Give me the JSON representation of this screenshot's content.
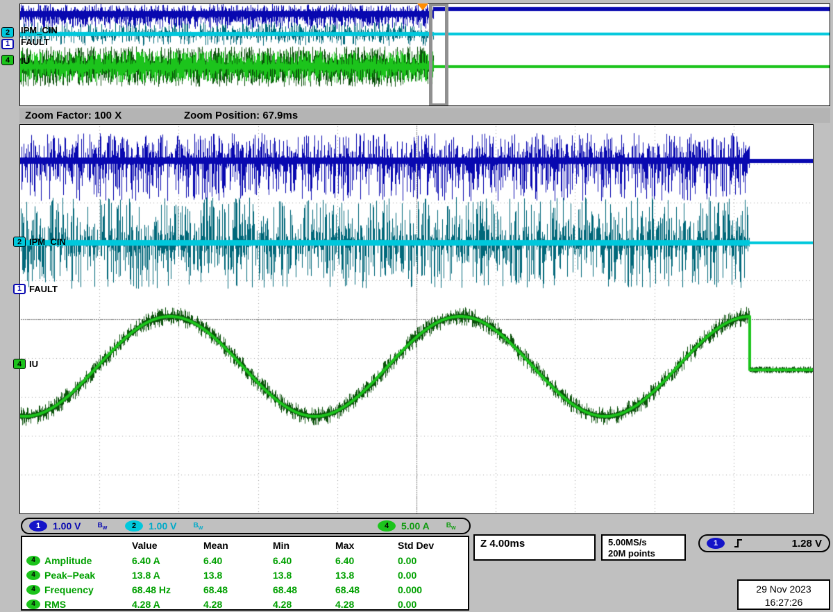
{
  "overview": {
    "channels": [
      {
        "badge": "2",
        "label": "IPM_CIN"
      },
      {
        "badge": "1",
        "label": "FAULT"
      },
      {
        "badge": "4",
        "label": "IU"
      }
    ]
  },
  "zoom_bar": {
    "factor": "Zoom Factor: 100 X",
    "position": "Zoom Position: 67.9ms"
  },
  "main": {
    "channels": [
      {
        "badge": "2",
        "label": "IPM_CIN"
      },
      {
        "badge": "1",
        "label": "FAULT"
      },
      {
        "badge": "4",
        "label": "IU"
      }
    ]
  },
  "channel_bar": {
    "bw": {
      "b": "B",
      "w": "W"
    },
    "channels": [
      {
        "badge": "1",
        "scale": "1.00 V"
      },
      {
        "badge": "2",
        "scale": "1.00 V"
      },
      {
        "badge": "4",
        "scale": "5.00 A"
      }
    ]
  },
  "horizontal": {
    "zoom_scale": "Z 4.00ms",
    "sample_rate": "5.00MS/s",
    "record_length": "20M points"
  },
  "trigger": {
    "channel": "1",
    "level": "1.28 V"
  },
  "measurements": {
    "headers": [
      "Value",
      "Mean",
      "Min",
      "Max",
      "Std Dev"
    ],
    "rows": [
      {
        "badge": "4",
        "name": "Amplitude",
        "value": "6.40 A",
        "mean": "6.40",
        "min": "6.40",
        "max": "6.40",
        "std": "0.00"
      },
      {
        "badge": "4",
        "name": "Peak–Peak",
        "value": "13.8 A",
        "mean": "13.8",
        "min": "13.8",
        "max": "13.8",
        "std": "0.00"
      },
      {
        "badge": "4",
        "name": "Frequency",
        "value": "68.48 Hz",
        "mean": "68.48",
        "min": "68.48",
        "max": "68.48",
        "std": "0.000"
      },
      {
        "badge": "4",
        "name": "RMS",
        "value": "4.28 A",
        "mean": "4.28",
        "min": "4.28",
        "max": "4.28",
        "std": "0.00"
      }
    ]
  },
  "datetime": {
    "date": "29 Nov 2023",
    "time": "16:27:26"
  },
  "waveforms": {
    "iu": {
      "shape": "sine",
      "frequency_hz": 68.48,
      "cycles_visible": 2.7,
      "after_fault": "flat line"
    },
    "ipm_cin": {
      "shape": "flat line with dense noise spikes",
      "after_fault": "clean flat line"
    },
    "fault": {
      "shape": "high level with dense noise",
      "after_fault": "clean flat line"
    }
  },
  "colors": {
    "ch1": "#0808b0",
    "ch2": "#00c8dc",
    "ch2_dark": "#00687a",
    "ch4": "#1cc41c",
    "ch4_dark": "#0b520b",
    "measure_green": "#00a000",
    "trigger_orange": "#ff8c00",
    "grid": "#9a9a9a"
  }
}
